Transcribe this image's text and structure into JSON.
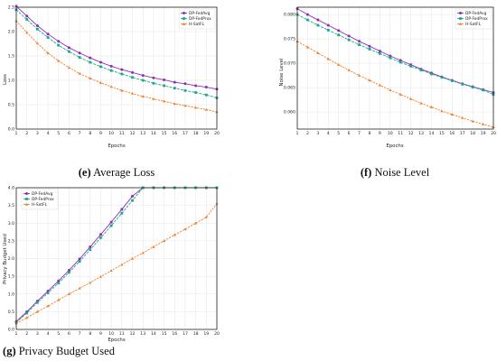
{
  "charts": [
    {
      "id": "e",
      "caption_letter": "(e)",
      "caption_text": "Average Loss",
      "chart_data": {
        "type": "line",
        "title": "",
        "xlabel": "Epochs",
        "ylabel": "Loss",
        "x": [
          1,
          2,
          3,
          4,
          5,
          6,
          7,
          8,
          9,
          10,
          11,
          12,
          13,
          14,
          15,
          16,
          17,
          18,
          19,
          20
        ],
        "xlim": [
          1,
          20
        ],
        "ylim": [
          0.0,
          2.5
        ],
        "yticks": [
          "0.0",
          "0.5",
          "1.0",
          "1.5",
          "2.0",
          "2.5"
        ],
        "legend_position": "top-right",
        "grid": true,
        "series": [
          {
            "name": "DP-FedAvg",
            "color": "#8b2fb8",
            "marker": "circle",
            "values": [
              2.52,
              2.32,
              2.12,
              1.95,
              1.8,
              1.67,
              1.56,
              1.46,
              1.37,
              1.29,
              1.22,
              1.16,
              1.1,
              1.05,
              1.01,
              0.96,
              0.93,
              0.89,
              0.86,
              0.82
            ]
          },
          {
            "name": "DP-FedProx",
            "color": "#1aa88c",
            "marker": "square",
            "values": [
              2.45,
              2.25,
              2.05,
              1.88,
              1.72,
              1.59,
              1.47,
              1.37,
              1.28,
              1.2,
              1.13,
              1.06,
              1.0,
              0.94,
              0.89,
              0.84,
              0.79,
              0.75,
              0.7,
              0.64
            ]
          },
          {
            "name": "H-SatFL",
            "color": "#ef7f2a",
            "marker": "triangle",
            "values": [
              2.22,
              1.98,
              1.76,
              1.56,
              1.4,
              1.26,
              1.14,
              1.04,
              0.95,
              0.87,
              0.79,
              0.73,
              0.67,
              0.62,
              0.57,
              0.52,
              0.48,
              0.44,
              0.4,
              0.35
            ]
          }
        ]
      }
    },
    {
      "id": "f",
      "caption_letter": "(f)",
      "caption_text": "Noise Level",
      "chart_data": {
        "type": "line",
        "title": "",
        "xlabel": "Epochs",
        "ylabel": "Noise Level",
        "x": [
          1,
          2,
          3,
          4,
          5,
          6,
          7,
          8,
          9,
          10,
          11,
          12,
          13,
          14,
          15,
          16,
          17,
          18,
          19,
          20
        ],
        "xlim": [
          1,
          20
        ],
        "ylim": [
          0.0565,
          0.0815
        ],
        "yticks": [
          "0.060",
          "0.065",
          "0.070",
          "0.075",
          "0.080"
        ],
        "ytick_values": [
          0.06,
          0.065,
          0.07,
          0.075,
          0.08
        ],
        "legend_position": "top-right",
        "grid": true,
        "series": [
          {
            "name": "DP-FedAvg",
            "color": "#8b2fb8",
            "marker": "circle",
            "values": [
              0.0812,
              0.08,
              0.0789,
              0.0778,
              0.0767,
              0.0756,
              0.0745,
              0.0735,
              0.0725,
              0.0715,
              0.0706,
              0.0697,
              0.0688,
              0.068,
              0.0672,
              0.0665,
              0.0658,
              0.0652,
              0.0646,
              0.064
            ]
          },
          {
            "name": "DP-FedProx",
            "color": "#1aa88c",
            "marker": "square",
            "values": [
              0.08,
              0.0789,
              0.0778,
              0.0768,
              0.0758,
              0.0748,
              0.0738,
              0.0729,
              0.072,
              0.0711,
              0.0702,
              0.0694,
              0.0686,
              0.0678,
              0.0671,
              0.0664,
              0.0657,
              0.0651,
              0.0645,
              0.0636
            ]
          },
          {
            "name": "H-SatFL",
            "color": "#ef7f2a",
            "marker": "triangle",
            "values": [
              0.0745,
              0.0733,
              0.0721,
              0.0709,
              0.0697,
              0.0686,
              0.0675,
              0.0665,
              0.0655,
              0.0645,
              0.0636,
              0.0627,
              0.0618,
              0.061,
              0.0602,
              0.0595,
              0.0588,
              0.0581,
              0.0575,
              0.0569
            ]
          }
        ]
      }
    },
    {
      "id": "g",
      "caption_letter": "(g)",
      "caption_text": "Privacy Budget Used",
      "chart_data": {
        "type": "line",
        "title": "",
        "xlabel": "Epochs",
        "ylabel": "Privacy Budget Used",
        "x": [
          1,
          2,
          3,
          4,
          5,
          6,
          7,
          8,
          9,
          10,
          11,
          12,
          13,
          14,
          15,
          16,
          17,
          18,
          19,
          20
        ],
        "xlim": [
          1,
          20
        ],
        "ylim": [
          0.0,
          4.0
        ],
        "yticks": [
          "0.0",
          "0.5",
          "1.0",
          "1.5",
          "2.0",
          "2.5",
          "3.0",
          "3.5",
          "4.0"
        ],
        "legend_position": "top-left",
        "grid": true,
        "series": [
          {
            "name": "DP-FedAvg",
            "color": "#8b2fb8",
            "marker": "circle",
            "values": [
              0.22,
              0.5,
              0.8,
              1.08,
              1.37,
              1.67,
              1.99,
              2.33,
              2.68,
              3.03,
              3.39,
              3.76,
              4.0,
              4.0,
              4.0,
              4.0,
              4.0,
              4.0,
              4.0,
              4.0
            ]
          },
          {
            "name": "DP-FedProx",
            "color": "#1aa88c",
            "marker": "square",
            "values": [
              0.2,
              0.46,
              0.76,
              1.03,
              1.31,
              1.61,
              1.92,
              2.25,
              2.59,
              2.93,
              3.28,
              3.64,
              4.0,
              4.0,
              4.0,
              4.0,
              4.0,
              4.0,
              4.0,
              4.0
            ]
          },
          {
            "name": "H-SatFL",
            "color": "#ef7f2a",
            "marker": "triangle",
            "values": [
              0.17,
              0.33,
              0.5,
              0.66,
              0.83,
              1.0,
              1.16,
              1.32,
              1.49,
              1.66,
              1.83,
              2.0,
              2.16,
              2.33,
              2.5,
              2.67,
              2.83,
              3.0,
              3.17,
              3.55
            ]
          }
        ]
      }
    }
  ]
}
